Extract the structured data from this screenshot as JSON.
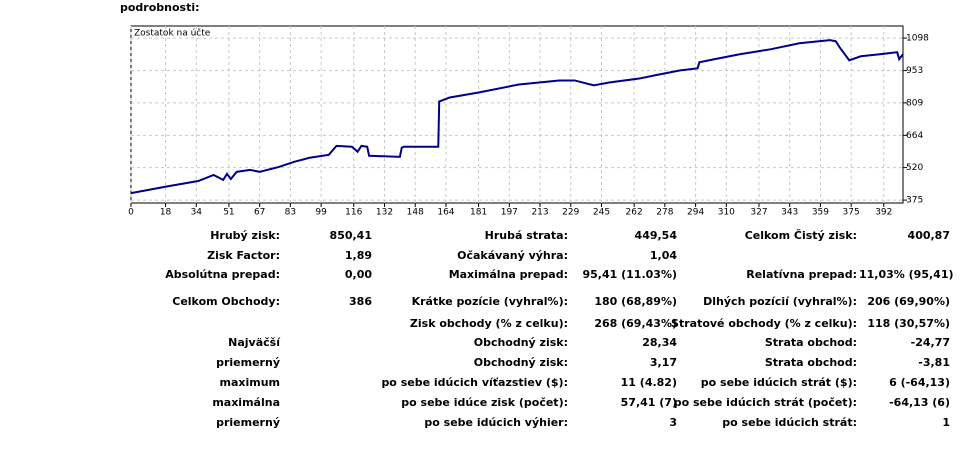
{
  "header": {
    "title": "podrobnosti:"
  },
  "chart_data": {
    "type": "line",
    "title": "Zostatok na účte",
    "x": [
      0,
      20,
      35,
      43,
      46,
      48,
      50,
      52,
      55,
      62,
      67,
      77,
      85,
      93,
      103,
      107,
      115,
      118,
      120,
      123,
      124,
      140,
      141,
      142,
      160,
      160.5,
      166,
      181,
      202,
      223,
      231,
      241,
      249,
      265,
      273,
      286,
      295,
      296,
      304,
      317,
      333,
      348,
      364,
      367,
      369,
      374,
      380,
      390,
      399,
      400,
      402
    ],
    "series": [
      {
        "name": "Zostatok na účte",
        "color": "#00008b",
        "values": [
          406,
          438,
          460,
          487,
          474,
          465,
          492,
          469,
          501,
          510,
          501,
          523,
          546,
          564,
          577,
          617,
          613,
          591,
          617,
          613,
          573,
          568,
          609,
          613,
          613,
          815,
          833,
          855,
          891,
          909,
          909,
          887,
          900,
          918,
          932,
          954,
          963,
          990,
          1004,
          1026,
          1048,
          1075,
          1089,
          1084,
          1057,
          999,
          1017,
          1026,
          1035,
          1004,
          1026
        ]
      }
    ],
    "xlim": [
      0,
      402
    ],
    "xticks": [
      0,
      18,
      34,
      51,
      67,
      83,
      99,
      116,
      132,
      148,
      164,
      181,
      197,
      213,
      229,
      245,
      262,
      278,
      294,
      310,
      327,
      343,
      359,
      375,
      392
    ],
    "ylim": [
      362,
      1152
    ],
    "yticks": [
      375,
      520,
      664,
      809,
      953,
      1098
    ],
    "grid": true
  },
  "table": {
    "rows": [
      [
        "Hrubý zisk:",
        "850,41",
        "Hrubá strata:",
        "449,54",
        "Celkom Čistý zisk:",
        "400,87"
      ],
      [
        "Zisk Factor:",
        "1,89",
        "Očakávaný výhra:",
        "1,04",
        null,
        null
      ],
      [
        "Absolútna prepad:",
        "0,00",
        "Maximálna prepad:",
        "95,41 (11.03%)",
        "Relatívna prepad:",
        "11,03% (95,41)"
      ],
      [
        "Celkom Obchody:",
        "386",
        "Krátke pozície (vyhral%):",
        "180 (68,89%)",
        "Dlhých pozícií (vyhral%):",
        "206 (69,90%)"
      ],
      [
        null,
        null,
        "Zisk obchody (% z celku):",
        "268 (69,43%)",
        "Stratové obchody (% z celku):",
        "118 (30,57%)"
      ],
      [
        "Najväčší",
        null,
        "Obchodný zisk:",
        "28,34",
        "Strata obchod:",
        "-24,77"
      ],
      [
        "priemerný",
        null,
        "Obchodný zisk:",
        "3,17",
        "Strata obchod:",
        "-3,81"
      ],
      [
        "maximum",
        null,
        "po sebe idúcich víťazstiev ($):",
        "11 (4.82)",
        "po sebe idúcich strát ($):",
        "6 (-64,13)"
      ],
      [
        "maximálna",
        null,
        "po sebe idúce zisk (počet):",
        "57,41 (7)",
        "po sebe idúcich strát (počet):",
        "-64,13 (6)"
      ],
      [
        "priemerný",
        null,
        "po sebe idúcich výhier:",
        "3",
        "po sebe idúcich strát:",
        "1"
      ]
    ]
  }
}
